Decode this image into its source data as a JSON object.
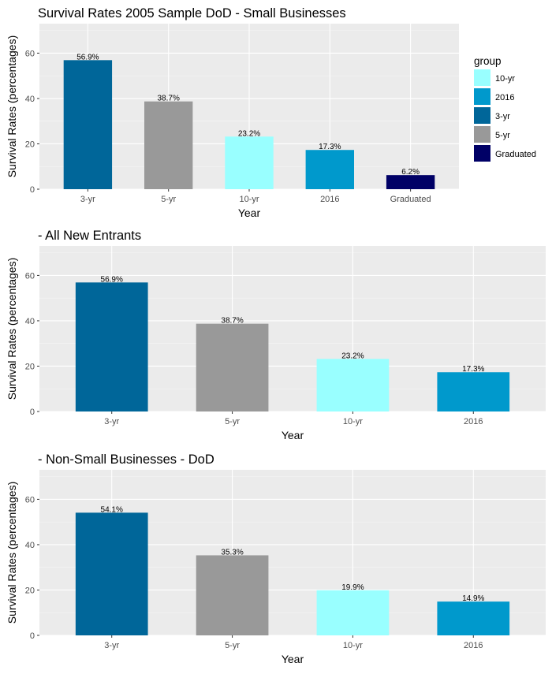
{
  "colors": {
    "3-yr": "#006699",
    "5-yr": "#999999",
    "10-yr": "#99ffff",
    "2016": "#0099cc",
    "Graduated": "#000066"
  },
  "legend": {
    "title": "group",
    "items": [
      "10-yr",
      "2016",
      "3-yr",
      "5-yr",
      "Graduated"
    ]
  },
  "chart_data": [
    {
      "type": "bar",
      "title": "Survival Rates 2005 Sample DoD - Small Businesses",
      "xlabel": "Year",
      "ylabel": "Survival Rates (percentages)",
      "ylim": [
        0,
        73
      ],
      "yticks": [
        0,
        20,
        40,
        60
      ],
      "grid": true,
      "legend_position": "right",
      "categories": [
        "3-yr",
        "5-yr",
        "10-yr",
        "2016",
        "Graduated"
      ],
      "values": [
        56.9,
        38.7,
        23.2,
        17.3,
        6.2
      ],
      "data_labels": [
        "56.9%",
        "38.7%",
        "23.2%",
        "17.3%",
        "6.2%"
      ]
    },
    {
      "type": "bar",
      "title": "- All New Entrants",
      "xlabel": "Year",
      "ylabel": "Survival Rates (percentages)",
      "ylim": [
        0,
        73
      ],
      "yticks": [
        0,
        20,
        40,
        60
      ],
      "grid": true,
      "categories": [
        "3-yr",
        "5-yr",
        "10-yr",
        "2016"
      ],
      "values": [
        56.9,
        38.7,
        23.2,
        17.3
      ],
      "data_labels": [
        "56.9%",
        "38.7%",
        "23.2%",
        "17.3%"
      ]
    },
    {
      "type": "bar",
      "title": "- Non-Small Businesses - DoD",
      "xlabel": "Year",
      "ylabel": "Survival Rates (percentages)",
      "ylim": [
        0,
        73
      ],
      "yticks": [
        0,
        20,
        40,
        60
      ],
      "grid": true,
      "categories": [
        "3-yr",
        "5-yr",
        "10-yr",
        "2016"
      ],
      "values": [
        54.1,
        35.3,
        19.9,
        14.9
      ],
      "data_labels": [
        "54.1%",
        "35.3%",
        "19.9%",
        "14.9%"
      ]
    }
  ]
}
